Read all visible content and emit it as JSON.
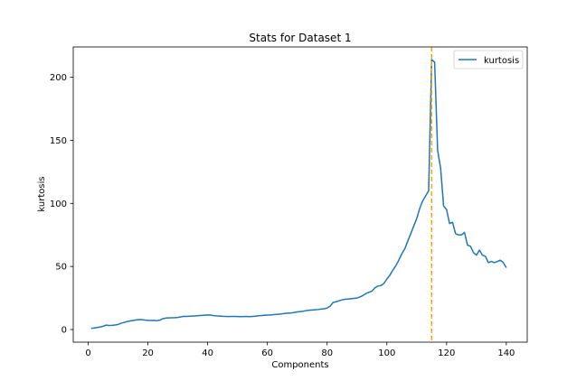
{
  "chart_data": {
    "type": "line",
    "title": "Stats for Dataset 1",
    "xlabel": "Components",
    "ylabel": "kurtosis",
    "xlim": [
      -5,
      147
    ],
    "ylim": [
      -10,
      224
    ],
    "xticks": [
      0,
      20,
      40,
      60,
      80,
      100,
      120,
      140
    ],
    "yticks": [
      0,
      50,
      100,
      150,
      200
    ],
    "legend": {
      "position": "top-right"
    },
    "grid": false,
    "vline": {
      "x": 115,
      "color": "#ffa500",
      "style": "dashed"
    },
    "series": [
      {
        "name": "kurtosis",
        "color": "#1f77b4",
        "x": [
          1,
          2,
          3,
          4,
          5,
          6,
          7,
          8,
          9,
          10,
          11,
          12,
          13,
          14,
          15,
          16,
          17,
          18,
          19,
          20,
          21,
          22,
          23,
          24,
          25,
          26,
          27,
          28,
          29,
          30,
          31,
          32,
          33,
          34,
          35,
          36,
          37,
          38,
          39,
          40,
          41,
          42,
          43,
          44,
          45,
          46,
          47,
          48,
          49,
          50,
          51,
          52,
          53,
          54,
          55,
          56,
          57,
          58,
          59,
          60,
          61,
          62,
          63,
          64,
          65,
          66,
          67,
          68,
          69,
          70,
          71,
          72,
          73,
          74,
          75,
          76,
          77,
          78,
          79,
          80,
          81,
          82,
          83,
          84,
          85,
          86,
          87,
          88,
          89,
          90,
          91,
          92,
          93,
          94,
          95,
          96,
          97,
          98,
          99,
          100,
          101,
          102,
          103,
          104,
          105,
          106,
          107,
          108,
          109,
          110,
          111,
          112,
          113,
          114,
          115,
          116,
          117,
          118,
          119,
          120,
          121,
          122,
          123,
          124,
          125,
          126,
          127,
          128,
          129,
          130,
          131,
          132,
          133,
          134,
          135,
          136,
          137,
          138,
          139,
          140
        ],
        "values": [
          1,
          1.2,
          1.6,
          2,
          2.6,
          3.5,
          3.2,
          3.3,
          3.6,
          4,
          5,
          5.6,
          6.3,
          6.8,
          7.2,
          7.6,
          7.9,
          7.8,
          7.5,
          7.3,
          7.2,
          7.3,
          7,
          7.4,
          8.6,
          9.1,
          9.2,
          9.3,
          9.4,
          9.6,
          10,
          10.5,
          10.4,
          10.6,
          10.7,
          10.8,
          11,
          11.2,
          11.4,
          11.6,
          11.5,
          11,
          10.8,
          10.7,
          10.5,
          10.4,
          10.3,
          10.4,
          10.4,
          10.3,
          10.2,
          10.3,
          10.4,
          10.2,
          10.4,
          10.6,
          10.9,
          11.1,
          11.3,
          11.5,
          11.6,
          11.8,
          12,
          12.2,
          12.5,
          12.8,
          13,
          13.2,
          13.5,
          14,
          14.2,
          14.5,
          15,
          15.3,
          15.5,
          15.7,
          15.9,
          16.2,
          16.5,
          17,
          18.5,
          21.5,
          22,
          22.8,
          23.5,
          24,
          24.2,
          24.4,
          24.7,
          25,
          25.8,
          27,
          28.5,
          29.5,
          30.5,
          33,
          34.5,
          34.8,
          36.5,
          40,
          43,
          47,
          50.5,
          55,
          60,
          64,
          70,
          76,
          82,
          88,
          96,
          102,
          106,
          110,
          214,
          212,
          142,
          128,
          98,
          95,
          84,
          85,
          76,
          75,
          75,
          77,
          67,
          66,
          61,
          59,
          63,
          59,
          58,
          53,
          54,
          53,
          54,
          55,
          53,
          49
        ]
      }
    ]
  }
}
